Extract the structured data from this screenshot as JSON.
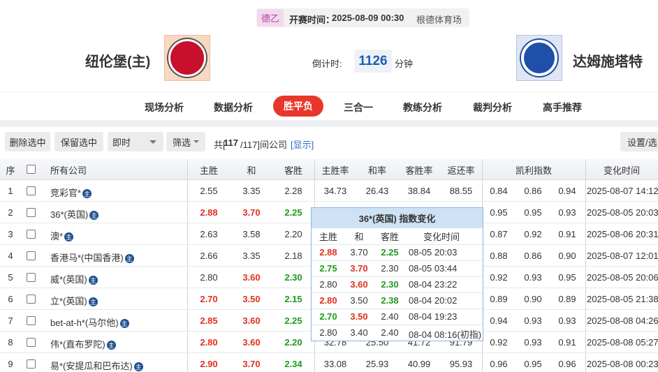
{
  "header": {
    "league": "德乙",
    "kickoff_label": "开赛时间：",
    "kickoff": "2025-08-09 00:30",
    "venue": "根德体育场",
    "home": "纽伦堡(主)",
    "away": "达姆施塔特",
    "countdown_label": "倒计时:",
    "countdown": "1126",
    "countdown_unit": "分钟"
  },
  "tabs": [
    "现场分析",
    "数据分析",
    "胜平负",
    "三合一",
    "教练分析",
    "裁判分析",
    "高手推荐"
  ],
  "active_tab": 2,
  "toolbar": {
    "delete": "删除选中",
    "keep": "保留选中",
    "mode": "即时",
    "filter": "筛选",
    "count_prefix": "共[",
    "count": "117",
    "count_suffix": "/117]间公司",
    "show": "[显示]",
    "settings": "设置/选"
  },
  "table": {
    "columns": [
      "序",
      "所有公司",
      "主胜",
      "和",
      "客胜",
      "主胜率",
      "和率",
      "客胜率",
      "返还率",
      "凯利指数",
      "变化时间"
    ],
    "badge": "主",
    "rows": [
      {
        "no": 1,
        "company": "竞彩官*",
        "odds": [
          "2.55",
          "3.35",
          "2.28"
        ],
        "trend": [
          "same",
          "same",
          "same"
        ],
        "rates": [
          "34.73",
          "26.43",
          "38.84",
          "88.55"
        ],
        "kelly": [
          "0.84",
          "0.86",
          "0.94"
        ],
        "time": "2025-08-07 14:12"
      },
      {
        "no": 2,
        "company": "36*(英国)",
        "odds": [
          "2.88",
          "3.70",
          "2.25"
        ],
        "trend": [
          "up",
          "up",
          "down"
        ],
        "kelly": [
          "0.95",
          "0.95",
          "0.93"
        ],
        "time": "2025-08-05 20:03"
      },
      {
        "no": 3,
        "company": "澳*",
        "odds": [
          "2.63",
          "3.58",
          "2.20"
        ],
        "trend": [
          "same",
          "same",
          "same"
        ],
        "kelly": [
          "0.87",
          "0.92",
          "0.91"
        ],
        "time": "2025-08-06 20:31"
      },
      {
        "no": 4,
        "company": "香港马*(中国香港)",
        "odds": [
          "2.66",
          "3.35",
          "2.18"
        ],
        "trend": [
          "same",
          "same",
          "same"
        ],
        "kelly": [
          "0.88",
          "0.86",
          "0.90"
        ],
        "time": "2025-08-07 12:01"
      },
      {
        "no": 5,
        "company": "威*(英国)",
        "odds": [
          "2.80",
          "3.60",
          "2.30"
        ],
        "trend": [
          "same",
          "up",
          "down"
        ],
        "kelly": [
          "0.92",
          "0.93",
          "0.95"
        ],
        "time": "2025-08-05 20:06"
      },
      {
        "no": 6,
        "company": "立*(英国)",
        "odds": [
          "2.70",
          "3.50",
          "2.15"
        ],
        "trend": [
          "up",
          "up",
          "down"
        ],
        "kelly": [
          "0.89",
          "0.90",
          "0.89"
        ],
        "time": "2025-08-05 21:38"
      },
      {
        "no": 7,
        "company": "bet-at-h*(马尔他)",
        "odds": [
          "2.85",
          "3.60",
          "2.25"
        ],
        "trend": [
          "up",
          "up",
          "down"
        ],
        "kelly": [
          "0.94",
          "0.93",
          "0.93"
        ],
        "time": "2025-08-08 04:26"
      },
      {
        "no": 8,
        "company": "伟*(直布罗陀)",
        "odds": [
          "2.80",
          "3.60",
          "2.20"
        ],
        "trend": [
          "up",
          "up",
          "down"
        ],
        "rates": [
          "32.78",
          "25.50",
          "41.72",
          "91.79"
        ],
        "kelly": [
          "0.92",
          "0.93",
          "0.91"
        ],
        "time": "2025-08-08 05:27"
      },
      {
        "no": 9,
        "company": "易*(安提瓜和巴布达)",
        "odds": [
          "2.90",
          "3.70",
          "2.34"
        ],
        "trend": [
          "up",
          "up",
          "down"
        ],
        "rates": [
          "33.08",
          "25.93",
          "40.99",
          "95.93"
        ],
        "kelly": [
          "0.96",
          "0.95",
          "0.96"
        ],
        "time": "2025-08-08 00:23"
      }
    ]
  },
  "popup": {
    "title": "36*(英国) 指数变化",
    "columns": [
      "主胜",
      "和",
      "客胜",
      "变化时间"
    ],
    "rows": [
      {
        "odds": [
          "2.88",
          "3.70",
          "2.25"
        ],
        "trend": [
          "up",
          "same",
          "down"
        ],
        "time": "08-05 20:03"
      },
      {
        "odds": [
          "2.75",
          "3.70",
          "2.30"
        ],
        "trend": [
          "down",
          "up",
          "same"
        ],
        "time": "08-05 03:44"
      },
      {
        "odds": [
          "2.80",
          "3.60",
          "2.30"
        ],
        "trend": [
          "same",
          "up",
          "down"
        ],
        "time": "08-04 23:22"
      },
      {
        "odds": [
          "2.80",
          "3.50",
          "2.38"
        ],
        "trend": [
          "up",
          "same",
          "down"
        ],
        "time": "08-04 20:02"
      },
      {
        "odds": [
          "2.70",
          "3.50",
          "2.40"
        ],
        "trend": [
          "down",
          "up",
          "same"
        ],
        "time": "08-04 19:23"
      },
      {
        "odds": [
          "2.80",
          "3.40",
          "2.40"
        ],
        "trend": [
          "same",
          "same",
          "same"
        ],
        "time": "08-04 08:16(初指)"
      }
    ]
  }
}
